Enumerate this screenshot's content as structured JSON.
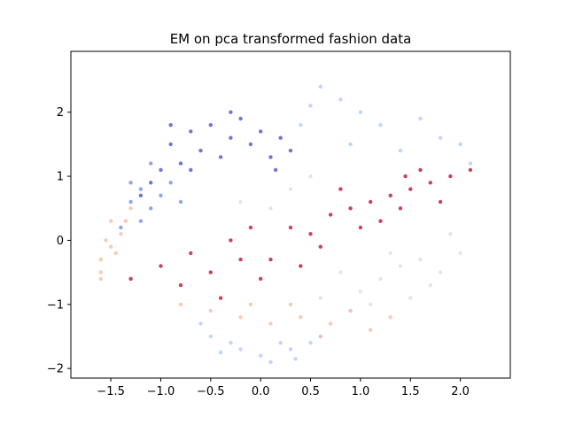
{
  "chart_data": {
    "type": "scatter",
    "title": "EM on pca transformed fashion data",
    "xlabel": "",
    "ylabel": "",
    "xlim": [
      -1.9,
      2.5
    ],
    "ylim": [
      -2.15,
      2.95
    ],
    "xticks": [
      -1.5,
      -1.0,
      -0.5,
      0.0,
      0.5,
      1.0,
      1.5,
      2.0
    ],
    "xtick_labels": [
      "−1.5",
      "−1.0",
      "−0.5",
      "0.0",
      "0.5",
      "1.0",
      "1.5",
      "2.0"
    ],
    "yticks": [
      -2,
      -1,
      0,
      1,
      2
    ],
    "ytick_labels": [
      "−2",
      "−1",
      "0",
      "1",
      "2"
    ],
    "grid": false,
    "colormap": "coolwarm",
    "clusters": [
      {
        "color": "#3b4cc0",
        "approx_points": [
          [
            -0.9,
            1.5
          ],
          [
            -0.7,
            1.7
          ],
          [
            -0.5,
            1.8
          ],
          [
            -0.3,
            1.6
          ],
          [
            -0.1,
            1.5
          ],
          [
            0.1,
            1.3
          ],
          [
            0.2,
            1.6
          ],
          [
            -0.8,
            1.2
          ],
          [
            -1.0,
            1.1
          ],
          [
            -0.6,
            1.4
          ],
          [
            -0.2,
            1.9
          ],
          [
            0.0,
            1.7
          ],
          [
            -1.1,
            0.9
          ],
          [
            -0.4,
            1.3
          ],
          [
            0.3,
            1.4
          ],
          [
            -0.7,
            1.1
          ],
          [
            -0.9,
            1.8
          ],
          [
            -0.3,
            2.0
          ],
          [
            0.15,
            1.1
          ],
          [
            -1.2,
            0.7
          ]
        ]
      },
      {
        "color": "#6788ee",
        "approx_points": [
          [
            -1.3,
            0.6
          ],
          [
            -1.2,
            0.8
          ],
          [
            -1.1,
            0.5
          ],
          [
            -1.0,
            0.7
          ],
          [
            -1.4,
            0.2
          ],
          [
            -1.2,
            0.3
          ],
          [
            -0.9,
            0.9
          ],
          [
            -1.3,
            0.9
          ],
          [
            -0.8,
            0.6
          ],
          [
            -1.1,
            1.2
          ]
        ]
      },
      {
        "color": "#aac7fd",
        "approx_points": [
          [
            -0.5,
            -1.5
          ],
          [
            -0.2,
            -1.7
          ],
          [
            0.0,
            -1.8
          ],
          [
            0.3,
            -1.7
          ],
          [
            0.5,
            -1.6
          ],
          [
            -0.3,
            -1.6
          ],
          [
            0.1,
            -1.9
          ],
          [
            -0.6,
            -1.3
          ],
          [
            0.2,
            -1.6
          ],
          [
            0.6,
            -1.5
          ],
          [
            0.4,
            1.8
          ],
          [
            0.8,
            2.2
          ],
          [
            1.0,
            2.0
          ],
          [
            0.6,
            2.4
          ],
          [
            1.4,
            1.4
          ],
          [
            1.8,
            1.6
          ],
          [
            2.0,
            1.5
          ],
          [
            0.9,
            1.5
          ],
          [
            1.2,
            1.8
          ],
          [
            0.5,
            2.1
          ],
          [
            -0.4,
            -1.75
          ],
          [
            0.35,
            -1.85
          ],
          [
            1.6,
            1.9
          ],
          [
            2.1,
            1.2
          ]
        ]
      },
      {
        "color": "#dddcdc",
        "approx_points": [
          [
            0.8,
            -0.5
          ],
          [
            1.0,
            -0.8
          ],
          [
            1.2,
            -0.6
          ],
          [
            1.4,
            -0.4
          ],
          [
            1.6,
            -0.3
          ],
          [
            1.8,
            -0.5
          ],
          [
            1.1,
            -1.0
          ],
          [
            0.6,
            -0.9
          ],
          [
            1.5,
            -0.9
          ],
          [
            0.3,
            0.8
          ],
          [
            0.1,
            0.5
          ],
          [
            0.5,
            1.0
          ],
          [
            1.9,
            0.1
          ],
          [
            1.3,
            -0.2
          ],
          [
            0.9,
            -1.1
          ],
          [
            1.7,
            -0.7
          ],
          [
            -0.2,
            0.6
          ],
          [
            2.0,
            -0.2
          ]
        ]
      },
      {
        "color": "#f7b89c",
        "approx_points": [
          [
            -1.6,
            -0.3
          ],
          [
            -1.5,
            -0.1
          ],
          [
            -1.4,
            0.1
          ],
          [
            -1.6,
            -0.5
          ],
          [
            -1.5,
            0.3
          ],
          [
            -1.3,
            0.5
          ],
          [
            -1.45,
            -0.2
          ],
          [
            -1.55,
            0.0
          ],
          [
            -0.5,
            -1.1
          ],
          [
            -0.2,
            -1.2
          ],
          [
            0.1,
            -1.3
          ],
          [
            0.4,
            -1.2
          ],
          [
            0.7,
            -1.3
          ],
          [
            0.9,
            -1.1
          ],
          [
            1.1,
            -1.4
          ],
          [
            -0.8,
            -1.0
          ],
          [
            0.3,
            -1.0
          ],
          [
            0.6,
            -1.5
          ],
          [
            1.3,
            -1.2
          ],
          [
            -0.1,
            -1.0
          ],
          [
            -1.35,
            0.3
          ],
          [
            -1.6,
            -0.6
          ]
        ]
      },
      {
        "color": "#b40426",
        "approx_points": [
          [
            -1.0,
            -0.4
          ],
          [
            -0.7,
            -0.2
          ],
          [
            -0.5,
            -0.5
          ],
          [
            -0.3,
            0.0
          ],
          [
            -0.1,
            0.2
          ],
          [
            0.1,
            -0.3
          ],
          [
            0.3,
            0.2
          ],
          [
            0.5,
            0.1
          ],
          [
            0.7,
            0.4
          ],
          [
            0.9,
            0.5
          ],
          [
            1.1,
            0.6
          ],
          [
            1.3,
            0.7
          ],
          [
            1.5,
            0.8
          ],
          [
            1.7,
            0.9
          ],
          [
            1.9,
            1.0
          ],
          [
            1.2,
            0.3
          ],
          [
            1.4,
            0.5
          ],
          [
            1.6,
            1.1
          ],
          [
            1.0,
            0.2
          ],
          [
            0.8,
            0.8
          ],
          [
            -0.8,
            -0.7
          ],
          [
            -0.4,
            -0.9
          ],
          [
            0.0,
            -0.6
          ],
          [
            0.4,
            -0.4
          ],
          [
            -1.3,
            -0.6
          ],
          [
            1.8,
            0.6
          ],
          [
            2.1,
            1.1
          ],
          [
            0.6,
            -0.1
          ],
          [
            1.45,
            1.0
          ],
          [
            -0.2,
            -0.3
          ]
        ]
      }
    ]
  }
}
